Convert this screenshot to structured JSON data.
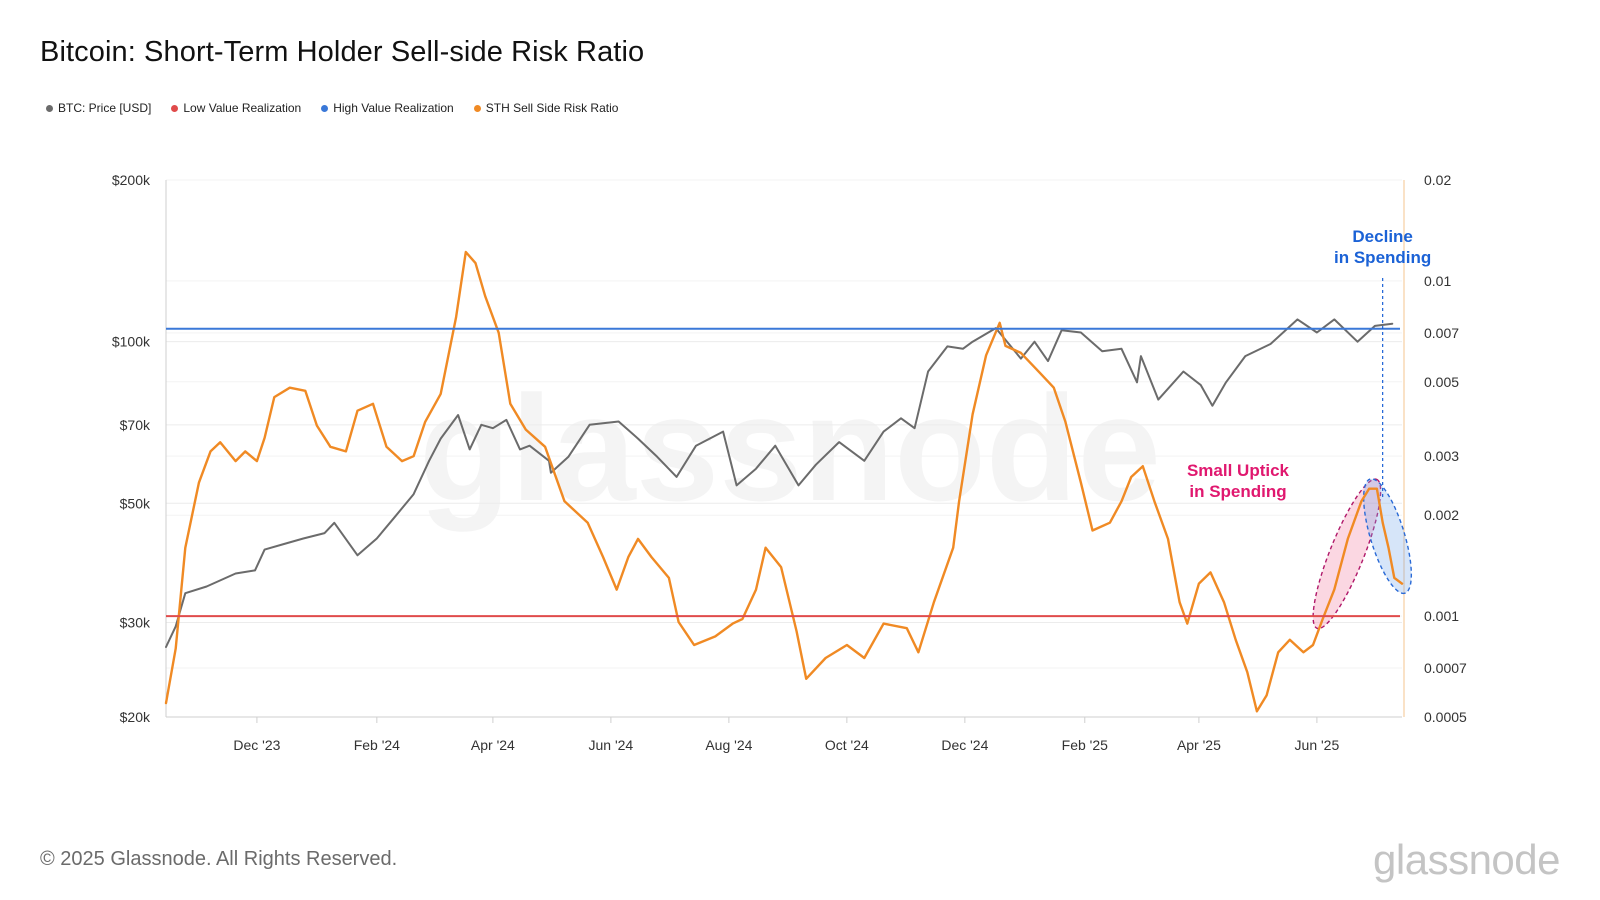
{
  "page": {
    "copyright": "© 2025 Glassnode. All Rights Reserved.",
    "brand": "glassnode",
    "watermark": "glassnode"
  },
  "chart_data": {
    "type": "line",
    "title": "Bitcoin: Short-Term Holder Sell-side Risk Ratio",
    "legend_position": "top-left",
    "grid": true,
    "legend": [
      {
        "label": "BTC: Price [USD]",
        "color": "#6b6b6b"
      },
      {
        "label": "Low Value Realization",
        "color": "#e04b4b"
      },
      {
        "label": "High Value Realization",
        "color": "#3a78d8"
      },
      {
        "label": "STH Sell Side Risk Ratio",
        "color": "#f08a24"
      }
    ],
    "x_range": [
      "2023-10-15",
      "2025-07-15"
    ],
    "x_ticks": [
      {
        "date": "2023-12-01",
        "label": "Dec '23"
      },
      {
        "date": "2024-02-01",
        "label": "Feb '24"
      },
      {
        "date": "2024-04-01",
        "label": "Apr '24"
      },
      {
        "date": "2024-06-01",
        "label": "Jun '24"
      },
      {
        "date": "2024-08-01",
        "label": "Aug '24"
      },
      {
        "date": "2024-10-01",
        "label": "Oct '24"
      },
      {
        "date": "2024-12-01",
        "label": "Dec '24"
      },
      {
        "date": "2025-02-01",
        "label": "Feb '25"
      },
      {
        "date": "2025-04-01",
        "label": "Apr '25"
      },
      {
        "date": "2025-06-01",
        "label": "Jun '25"
      }
    ],
    "y_left": {
      "scale": "log",
      "range": [
        20000,
        200000
      ],
      "ticks": [
        {
          "value": 20000,
          "label": "$20k"
        },
        {
          "value": 30000,
          "label": "$30k"
        },
        {
          "value": 50000,
          "label": "$50k"
        },
        {
          "value": 70000,
          "label": "$70k"
        },
        {
          "value": 100000,
          "label": "$100k"
        },
        {
          "value": 200000,
          "label": "$200k"
        }
      ]
    },
    "y_right": {
      "scale": "log",
      "range": [
        0.0005,
        0.02
      ],
      "ticks": [
        {
          "value": 0.0005,
          "label": "0.0005"
        },
        {
          "value": 0.0007,
          "label": "0.0007"
        },
        {
          "value": 0.001,
          "label": "0.001"
        },
        {
          "value": 0.002,
          "label": "0.002"
        },
        {
          "value": 0.003,
          "label": "0.003"
        },
        {
          "value": 0.005,
          "label": "0.005"
        },
        {
          "value": 0.007,
          "label": "0.007"
        },
        {
          "value": 0.01,
          "label": "0.01"
        },
        {
          "value": 0.02,
          "label": "0.02"
        }
      ]
    },
    "thresholds": [
      {
        "name": "High Value Realization",
        "value": 0.0072,
        "color": "#3a78d8"
      },
      {
        "name": "Low Value Realization",
        "value": 0.001,
        "color": "#e04b4b"
      }
    ],
    "series": [
      {
        "name": "BTC: Price [USD]",
        "axis": "left",
        "color": "#6b6b6b",
        "points": [
          [
            "2023-10-15",
            27000
          ],
          [
            "2023-10-20",
            29500
          ],
          [
            "2023-10-25",
            34000
          ],
          [
            "2023-11-05",
            35000
          ],
          [
            "2023-11-20",
            37000
          ],
          [
            "2023-11-30",
            37500
          ],
          [
            "2023-12-05",
            41000
          ],
          [
            "2023-12-15",
            42000
          ],
          [
            "2023-12-25",
            43000
          ],
          [
            "2024-01-05",
            44000
          ],
          [
            "2024-01-10",
            46000
          ],
          [
            "2024-01-22",
            40000
          ],
          [
            "2024-02-01",
            43000
          ],
          [
            "2024-02-10",
            47000
          ],
          [
            "2024-02-20",
            52000
          ],
          [
            "2024-02-28",
            60000
          ],
          [
            "2024-03-05",
            66000
          ],
          [
            "2024-03-14",
            73000
          ],
          [
            "2024-03-20",
            63000
          ],
          [
            "2024-03-26",
            70000
          ],
          [
            "2024-04-01",
            69000
          ],
          [
            "2024-04-08",
            71500
          ],
          [
            "2024-04-15",
            63000
          ],
          [
            "2024-04-20",
            64000
          ],
          [
            "2024-04-30",
            60000
          ],
          [
            "2024-05-01",
            57000
          ],
          [
            "2024-05-10",
            61000
          ],
          [
            "2024-05-21",
            70000
          ],
          [
            "2024-06-05",
            71000
          ],
          [
            "2024-06-15",
            66000
          ],
          [
            "2024-06-25",
            61000
          ],
          [
            "2024-07-05",
            56000
          ],
          [
            "2024-07-15",
            64000
          ],
          [
            "2024-07-29",
            68000
          ],
          [
            "2024-08-05",
            54000
          ],
          [
            "2024-08-15",
            58000
          ],
          [
            "2024-08-25",
            64000
          ],
          [
            "2024-09-06",
            54000
          ],
          [
            "2024-09-15",
            59000
          ],
          [
            "2024-09-27",
            65000
          ],
          [
            "2024-10-10",
            60000
          ],
          [
            "2024-10-20",
            68000
          ],
          [
            "2024-10-29",
            72000
          ],
          [
            "2024-11-05",
            69000
          ],
          [
            "2024-11-12",
            88000
          ],
          [
            "2024-11-22",
            98000
          ],
          [
            "2024-11-30",
            97000
          ],
          [
            "2024-12-05",
            100000
          ],
          [
            "2024-12-17",
            106000
          ],
          [
            "2024-12-30",
            93000
          ],
          [
            "2025-01-06",
            100000
          ],
          [
            "2025-01-13",
            92000
          ],
          [
            "2025-01-20",
            105000
          ],
          [
            "2025-01-30",
            104000
          ],
          [
            "2025-02-10",
            96000
          ],
          [
            "2025-02-20",
            97000
          ],
          [
            "2025-02-28",
            84000
          ],
          [
            "2025-03-02",
            94000
          ],
          [
            "2025-03-11",
            78000
          ],
          [
            "2025-03-24",
            88000
          ],
          [
            "2025-04-02",
            83000
          ],
          [
            "2025-04-08",
            76000
          ],
          [
            "2025-04-15",
            84000
          ],
          [
            "2025-04-25",
            94000
          ],
          [
            "2025-05-08",
            99000
          ],
          [
            "2025-05-22",
            110000
          ],
          [
            "2025-06-01",
            104000
          ],
          [
            "2025-06-10",
            110000
          ],
          [
            "2025-06-22",
            100000
          ],
          [
            "2025-07-01",
            107000
          ],
          [
            "2025-07-10",
            108000
          ]
        ]
      },
      {
        "name": "STH Sell Side Risk Ratio",
        "axis": "right",
        "color": "#f08a24",
        "points": [
          [
            "2023-10-15",
            0.00055
          ],
          [
            "2023-10-20",
            0.0008
          ],
          [
            "2023-10-25",
            0.0016
          ],
          [
            "2023-11-01",
            0.0025
          ],
          [
            "2023-11-07",
            0.0031
          ],
          [
            "2023-11-12",
            0.0033
          ],
          [
            "2023-11-20",
            0.0029
          ],
          [
            "2023-11-25",
            0.0031
          ],
          [
            "2023-12-01",
            0.0029
          ],
          [
            "2023-12-05",
            0.0034
          ],
          [
            "2023-12-10",
            0.0045
          ],
          [
            "2023-12-18",
            0.0048
          ],
          [
            "2023-12-26",
            0.0047
          ],
          [
            "2024-01-01",
            0.0037
          ],
          [
            "2024-01-08",
            0.0032
          ],
          [
            "2024-01-16",
            0.0031
          ],
          [
            "2024-01-22",
            0.0041
          ],
          [
            "2024-01-30",
            0.0043
          ],
          [
            "2024-02-06",
            0.0032
          ],
          [
            "2024-02-14",
            0.0029
          ],
          [
            "2024-02-20",
            0.003
          ],
          [
            "2024-02-26",
            0.0038
          ],
          [
            "2024-03-05",
            0.0046
          ],
          [
            "2024-03-13",
            0.0078
          ],
          [
            "2024-03-18",
            0.0122
          ],
          [
            "2024-03-23",
            0.0113
          ],
          [
            "2024-03-28",
            0.009
          ],
          [
            "2024-04-04",
            0.007
          ],
          [
            "2024-04-10",
            0.0043
          ],
          [
            "2024-04-18",
            0.0036
          ],
          [
            "2024-04-28",
            0.0032
          ],
          [
            "2024-05-08",
            0.0022
          ],
          [
            "2024-05-20",
            0.0019
          ],
          [
            "2024-05-28",
            0.0015
          ],
          [
            "2024-06-04",
            0.0012
          ],
          [
            "2024-06-10",
            0.0015
          ],
          [
            "2024-06-15",
            0.0017
          ],
          [
            "2024-06-22",
            0.0015
          ],
          [
            "2024-07-01",
            0.0013
          ],
          [
            "2024-07-06",
            0.00096
          ],
          [
            "2024-07-14",
            0.00082
          ],
          [
            "2024-07-25",
            0.00087
          ],
          [
            "2024-08-03",
            0.00095
          ],
          [
            "2024-08-08",
            0.00098
          ],
          [
            "2024-08-15",
            0.0012
          ],
          [
            "2024-08-20",
            0.0016
          ],
          [
            "2024-08-28",
            0.0014
          ],
          [
            "2024-09-05",
            0.0009
          ],
          [
            "2024-09-10",
            0.00065
          ],
          [
            "2024-09-20",
            0.00075
          ],
          [
            "2024-10-01",
            0.00082
          ],
          [
            "2024-10-10",
            0.00075
          ],
          [
            "2024-10-20",
            0.00095
          ],
          [
            "2024-11-01",
            0.00092
          ],
          [
            "2024-11-07",
            0.00078
          ],
          [
            "2024-11-15",
            0.0011
          ],
          [
            "2024-11-25",
            0.0016
          ],
          [
            "2024-11-28",
            0.0022
          ],
          [
            "2024-12-05",
            0.004
          ],
          [
            "2024-12-12",
            0.006
          ],
          [
            "2024-12-19",
            0.0075
          ],
          [
            "2024-12-22",
            0.0064
          ],
          [
            "2024-12-30",
            0.0061
          ],
          [
            "2025-01-09",
            0.0053
          ],
          [
            "2025-01-16",
            0.0048
          ],
          [
            "2025-01-22",
            0.0038
          ],
          [
            "2025-01-30",
            0.0025
          ],
          [
            "2025-02-05",
            0.0018
          ],
          [
            "2025-02-14",
            0.0019
          ],
          [
            "2025-02-20",
            0.0022
          ],
          [
            "2025-02-25",
            0.0026
          ],
          [
            "2025-03-03",
            0.0028
          ],
          [
            "2025-03-09",
            0.0022
          ],
          [
            "2025-03-16",
            0.0017
          ],
          [
            "2025-03-22",
            0.0011
          ],
          [
            "2025-03-26",
            0.00095
          ],
          [
            "2025-04-01",
            0.00125
          ],
          [
            "2025-04-07",
            0.00135
          ],
          [
            "2025-04-14",
            0.0011
          ],
          [
            "2025-04-20",
            0.00085
          ],
          [
            "2025-04-26",
            0.00068
          ],
          [
            "2025-05-01",
            0.00052
          ],
          [
            "2025-05-06",
            0.00058
          ],
          [
            "2025-05-12",
            0.00078
          ],
          [
            "2025-05-18",
            0.00085
          ],
          [
            "2025-05-25",
            0.00078
          ],
          [
            "2025-05-30",
            0.00082
          ],
          [
            "2025-06-04",
            0.00098
          ],
          [
            "2025-06-10",
            0.0012
          ],
          [
            "2025-06-17",
            0.0017
          ],
          [
            "2025-06-24",
            0.0022
          ],
          [
            "2025-06-28",
            0.0024
          ],
          [
            "2025-07-02",
            0.0024
          ],
          [
            "2025-07-05",
            0.0019
          ],
          [
            "2025-07-08",
            0.0016
          ],
          [
            "2025-07-11",
            0.0013
          ],
          [
            "2025-07-15",
            0.00125
          ]
        ]
      }
    ],
    "annotations": [
      {
        "text_lines": [
          "Decline",
          "in Spending"
        ],
        "color": "#1b62d6"
      },
      {
        "text_lines": [
          "Small Uptick",
          "in Spending"
        ],
        "color": "#e0186f"
      }
    ]
  }
}
